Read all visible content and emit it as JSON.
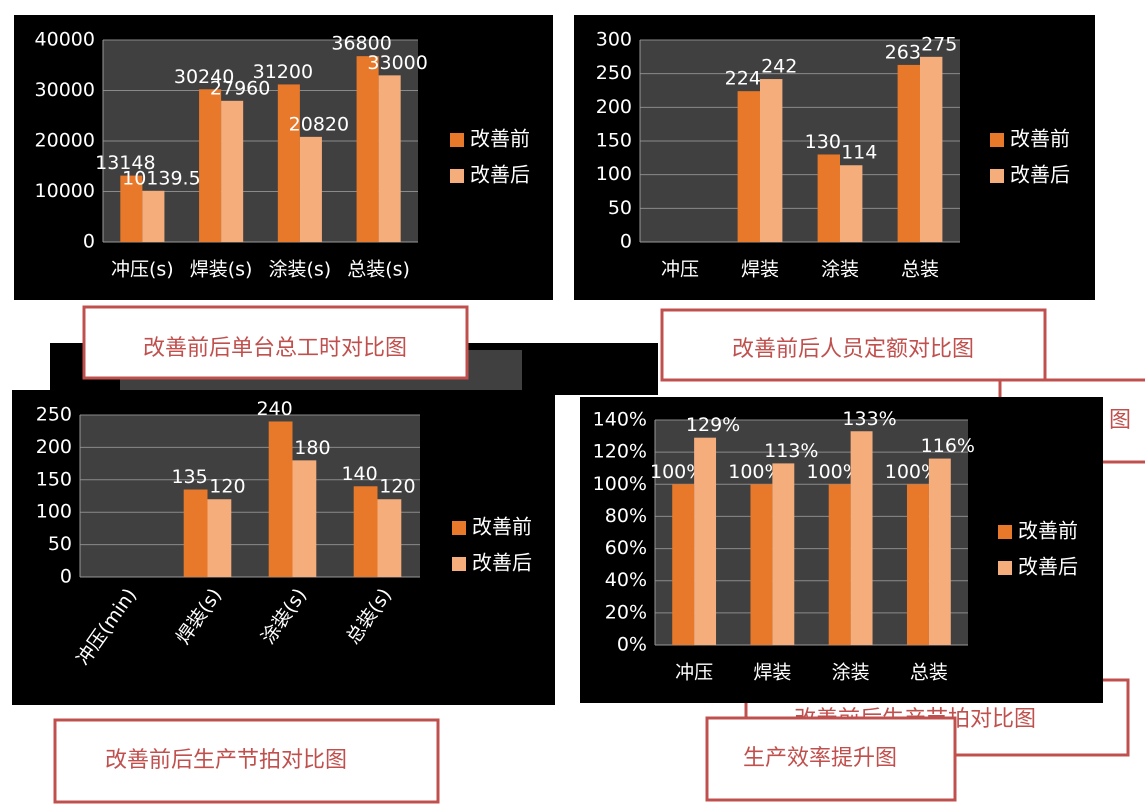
{
  "chart_data": [
    {
      "type": "bar",
      "categories": [
        "冲压(s)",
        "焊装(s)",
        "涂装(s)",
        "总装(s)"
      ],
      "series": [
        {
          "name": "改善前",
          "color": "#e8792a",
          "values": [
            13148,
            30240,
            31200,
            36800
          ]
        },
        {
          "name": "改善后",
          "color": "#f5ad7c",
          "values": [
            10139.5,
            27960,
            20820,
            33000
          ]
        }
      ],
      "ylim": [
        0,
        40000
      ],
      "yticks": [
        0,
        10000,
        20000,
        30000,
        40000
      ],
      "grid": true,
      "legend": "right"
    },
    {
      "type": "bar",
      "categories": [
        "冲压",
        "焊装",
        "涂装",
        "总装"
      ],
      "series": [
        {
          "name": "改善前",
          "color": "#e8792a",
          "values": [
            null,
            224,
            130,
            263
          ]
        },
        {
          "name": "改善后",
          "color": "#f5ad7c",
          "values": [
            null,
            242,
            114,
            275
          ]
        }
      ],
      "ylim": [
        0,
        300
      ],
      "yticks": [
        0,
        50,
        100,
        150,
        200,
        250,
        300
      ],
      "grid": true,
      "legend": "right"
    },
    {
      "type": "bar",
      "categories": [
        "冲压(min)",
        "焊装(s)",
        "涂装(s)",
        "总装(s)"
      ],
      "series": [
        {
          "name": "改善前",
          "color": "#e8792a",
          "values": [
            null,
            135,
            240,
            140
          ]
        },
        {
          "name": "改善后",
          "color": "#f5ad7c",
          "values": [
            null,
            120,
            180,
            120
          ]
        }
      ],
      "ylim": [
        0,
        250
      ],
      "yticks": [
        0,
        50,
        100,
        150,
        200,
        250
      ],
      "grid": true,
      "legend": "right"
    },
    {
      "type": "bar",
      "categories": [
        "冲压",
        "焊装",
        "涂装",
        "总装"
      ],
      "series": [
        {
          "name": "改善前",
          "color": "#e8792a",
          "values": [
            100,
            100,
            100,
            100
          ],
          "value_labels": [
            "100%",
            "100%",
            "100%",
            "100%"
          ]
        },
        {
          "name": "改善后",
          "color": "#f5ad7c",
          "values": [
            129,
            113,
            133,
            116
          ],
          "value_labels": [
            "129%",
            "113%",
            "133%",
            "116%"
          ]
        }
      ],
      "ylim": [
        0,
        140
      ],
      "yticks": [
        {
          "value": 0,
          "label": "0%"
        },
        {
          "value": 20,
          "label": "20%"
        },
        {
          "value": 40,
          "label": "40%"
        },
        {
          "value": 60,
          "label": "60%"
        },
        {
          "value": 80,
          "label": "80%"
        },
        {
          "value": 100,
          "label": "100%"
        },
        {
          "value": 120,
          "label": "120%"
        },
        {
          "value": 140,
          "label": "140%"
        }
      ],
      "grid": true,
      "legend": "right"
    }
  ],
  "captions": [
    "改善前后单台总工时对比图",
    "改善前后人员定额对比图",
    "改善前后生产节拍对比图",
    "生产效率提升图"
  ],
  "background_captions": [
    "改善前后生产节拍对比图",
    "图"
  ]
}
